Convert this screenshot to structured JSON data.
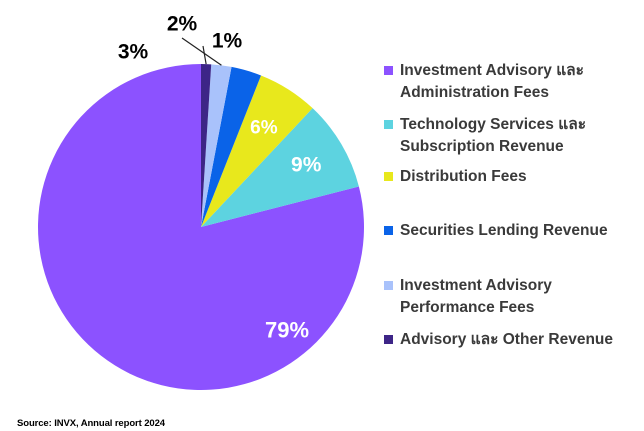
{
  "chart_data": {
    "type": "pie",
    "categories": [
      "Investment Advisory และ Administration Fees",
      "Technology Services และ Subscription Revenue",
      "Distribution Fees",
      "Securities Lending Revenue",
      "Investment Advisory Performance Fees",
      "Advisory และ Other Revenue"
    ],
    "values": [
      79,
      9,
      6,
      3,
      2,
      1
    ],
    "value_labels": [
      "79%",
      "9%",
      "6%",
      "3%",
      "2%",
      "1%"
    ],
    "colors": [
      "#8c52ff",
      "#5dd3e0",
      "#e8e81c",
      "#0a63e8",
      "#a9c2fb",
      "#3d2587"
    ],
    "legend_position": "right",
    "start_angle_deg": 0,
    "direction": "clockwise"
  },
  "legend": {
    "items": [
      {
        "label": "Investment Advisory และ\nAdministration Fees",
        "color": "#8c52ff"
      },
      {
        "label": "Technology Services และ\nSubscription Revenue",
        "color": "#5dd3e0"
      },
      {
        "label": "Distribution Fees",
        "color": "#e8e81c"
      },
      {
        "label": "Securities Lending Revenue",
        "color": "#0a63e8"
      },
      {
        "label": "Investment Advisory\nPerformance Fees",
        "color": "#a9c2fb"
      },
      {
        "label": "Advisory และ Other Revenue",
        "color": "#3d2587"
      }
    ]
  },
  "source": "Source: INVX, Annual report 2024"
}
